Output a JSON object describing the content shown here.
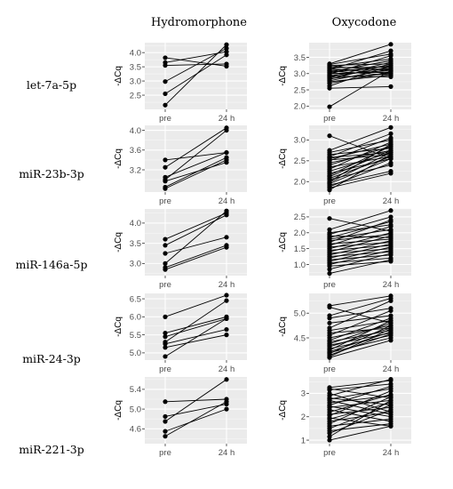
{
  "figure": {
    "column_titles": [
      "Hydromorphone",
      "Oxycodone"
    ],
    "row_labels": [
      "let-7a-5p",
      "miR-23b-3p",
      "miR-146a-5p",
      "miR-24-3p",
      "miR-221-3p"
    ]
  },
  "chart_data": [
    {
      "type": "line",
      "row": "let-7a-5p",
      "column": "Hydromorphone",
      "ylabel": "-ΔCq",
      "categories": [
        "pre",
        "24 h"
      ],
      "ylim": [
        2.0,
        4.35
      ],
      "yticks": [
        2.5,
        3.0,
        3.5,
        4.0
      ],
      "pairs": [
        [
          3.82,
          3.52
        ],
        [
          3.65,
          4.03
        ],
        [
          3.55,
          3.6
        ],
        [
          2.98,
          4.15
        ],
        [
          2.55,
          3.92
        ],
        [
          2.15,
          4.28
        ]
      ]
    },
    {
      "type": "line",
      "row": "let-7a-5p",
      "column": "Oxycodone",
      "ylabel": "-ΔCq",
      "categories": [
        "pre",
        "24 h"
      ],
      "ylim": [
        1.9,
        3.95
      ],
      "yticks": [
        2.0,
        2.5,
        3.0,
        3.5
      ],
      "pairs": [
        [
          3.3,
          3.9
        ],
        [
          3.28,
          3.6
        ],
        [
          3.25,
          3.3
        ],
        [
          3.22,
          3.1
        ],
        [
          3.2,
          3.45
        ],
        [
          3.18,
          3.2
        ],
        [
          3.15,
          3.0
        ],
        [
          3.12,
          3.7
        ],
        [
          3.1,
          3.15
        ],
        [
          3.08,
          2.95
        ],
        [
          3.05,
          3.4
        ],
        [
          3.03,
          3.25
        ],
        [
          3.0,
          3.05
        ],
        [
          2.98,
          3.55
        ],
        [
          2.95,
          3.1
        ],
        [
          2.92,
          2.9
        ],
        [
          2.9,
          3.35
        ],
        [
          2.88,
          3.2
        ],
        [
          2.85,
          3.0
        ],
        [
          2.82,
          3.3
        ],
        [
          2.78,
          3.15
        ],
        [
          2.75,
          2.95
        ],
        [
          2.7,
          3.05
        ],
        [
          2.62,
          3.25
        ],
        [
          2.55,
          2.6
        ],
        [
          1.98,
          3.1
        ]
      ]
    },
    {
      "type": "line",
      "row": "miR-23b-3p",
      "column": "Hydromorphone",
      "ylabel": "-ΔCq",
      "categories": [
        "pre",
        "24 h"
      ],
      "ylim": [
        2.75,
        4.1
      ],
      "yticks": [
        3.2,
        3.6,
        4.0
      ],
      "pairs": [
        [
          3.4,
          3.55
        ],
        [
          3.25,
          4.05
        ],
        [
          3.05,
          3.55
        ],
        [
          3.0,
          4.0
        ],
        [
          2.97,
          3.35
        ],
        [
          2.85,
          3.45
        ],
        [
          2.82,
          3.4
        ]
      ]
    },
    {
      "type": "line",
      "row": "miR-23b-3p",
      "column": "Oxycodone",
      "ylabel": "-ΔCq",
      "categories": [
        "pre",
        "24 h"
      ],
      "ylim": [
        1.75,
        3.35
      ],
      "yticks": [
        2.0,
        2.5,
        3.0
      ],
      "pairs": [
        [
          3.1,
          2.55
        ],
        [
          2.75,
          3.3
        ],
        [
          2.7,
          3.0
        ],
        [
          2.65,
          2.8
        ],
        [
          2.6,
          3.15
        ],
        [
          2.58,
          2.7
        ],
        [
          2.55,
          2.9
        ],
        [
          2.52,
          2.65
        ],
        [
          2.5,
          3.05
        ],
        [
          2.45,
          2.75
        ],
        [
          2.4,
          2.85
        ],
        [
          2.35,
          2.6
        ],
        [
          2.3,
          2.95
        ],
        [
          2.25,
          2.7
        ],
        [
          2.2,
          2.55
        ],
        [
          2.15,
          2.85
        ],
        [
          2.12,
          2.75
        ],
        [
          2.08,
          2.6
        ],
        [
          2.05,
          2.4
        ],
        [
          2.0,
          2.9
        ],
        [
          1.98,
          2.7
        ],
        [
          1.95,
          2.55
        ],
        [
          1.92,
          2.25
        ],
        [
          1.88,
          2.45
        ],
        [
          1.85,
          2.2
        ],
        [
          1.8,
          2.65
        ]
      ]
    },
    {
      "type": "line",
      "row": "miR-146a-5p",
      "column": "Hydromorphone",
      "ylabel": "-ΔCq",
      "categories": [
        "pre",
        "24 h"
      ],
      "ylim": [
        2.7,
        4.35
      ],
      "yticks": [
        3.0,
        3.5,
        4.0
      ],
      "pairs": [
        [
          3.6,
          4.25
        ],
        [
          3.45,
          4.2
        ],
        [
          3.25,
          3.65
        ],
        [
          3.0,
          4.3
        ],
        [
          2.9,
          3.45
        ],
        [
          2.85,
          3.4
        ]
      ]
    },
    {
      "type": "line",
      "row": "miR-146a-5p",
      "column": "Oxycodone",
      "ylabel": "-ΔCq",
      "categories": [
        "pre",
        "24 h"
      ],
      "ylim": [
        0.65,
        2.75
      ],
      "yticks": [
        1.0,
        1.5,
        2.0,
        2.5
      ],
      "pairs": [
        [
          2.45,
          2.05
        ],
        [
          2.1,
          2.7
        ],
        [
          2.0,
          2.25
        ],
        [
          1.95,
          2.5
        ],
        [
          1.9,
          1.85
        ],
        [
          1.85,
          2.35
        ],
        [
          1.8,
          2.1
        ],
        [
          1.75,
          1.95
        ],
        [
          1.7,
          2.4
        ],
        [
          1.65,
          1.8
        ],
        [
          1.6,
          2.2
        ],
        [
          1.55,
          1.7
        ],
        [
          1.5,
          2.0
        ],
        [
          1.45,
          1.6
        ],
        [
          1.4,
          1.9
        ],
        [
          1.35,
          1.5
        ],
        [
          1.3,
          1.75
        ],
        [
          1.25,
          1.4
        ],
        [
          1.2,
          1.65
        ],
        [
          1.15,
          1.3
        ],
        [
          1.1,
          1.55
        ],
        [
          1.05,
          1.2
        ],
        [
          1.0,
          1.45
        ],
        [
          0.95,
          1.1
        ],
        [
          0.85,
          1.35
        ],
        [
          0.72,
          1.15
        ]
      ]
    },
    {
      "type": "line",
      "row": "miR-24-3p",
      "column": "Hydromorphone",
      "ylabel": "-ΔCq",
      "categories": [
        "pre",
        "24 h"
      ],
      "ylim": [
        4.8,
        6.65
      ],
      "yticks": [
        5.0,
        5.5,
        6.0,
        6.5
      ],
      "pairs": [
        [
          6.0,
          6.6
        ],
        [
          5.55,
          6.0
        ],
        [
          5.45,
          5.95
        ],
        [
          5.3,
          6.45
        ],
        [
          5.25,
          5.65
        ],
        [
          5.15,
          5.5
        ],
        [
          4.9,
          5.95
        ]
      ]
    },
    {
      "type": "line",
      "row": "miR-24-3p",
      "column": "Oxycodone",
      "ylabel": "-ΔCq",
      "categories": [
        "pre",
        "24 h"
      ],
      "ylim": [
        4.05,
        5.4
      ],
      "yticks": [
        4.5,
        5.0
      ],
      "pairs": [
        [
          5.15,
          5.35
        ],
        [
          5.12,
          4.8
        ],
        [
          4.95,
          5.3
        ],
        [
          4.9,
          5.1
        ],
        [
          4.8,
          4.95
        ],
        [
          4.7,
          5.25
        ],
        [
          4.65,
          4.85
        ],
        [
          4.6,
          4.7
        ],
        [
          4.55,
          5.05
        ],
        [
          4.5,
          4.75
        ],
        [
          4.45,
          4.9
        ],
        [
          4.42,
          4.65
        ],
        [
          4.38,
          4.8
        ],
        [
          4.35,
          4.6
        ],
        [
          4.32,
          4.7
        ],
        [
          4.28,
          4.55
        ],
        [
          4.25,
          4.85
        ],
        [
          4.22,
          4.62
        ],
        [
          4.2,
          4.5
        ],
        [
          4.18,
          4.75
        ],
        [
          4.15,
          4.58
        ],
        [
          4.12,
          4.68
        ],
        [
          4.1,
          4.45
        ]
      ]
    },
    {
      "type": "line",
      "row": "miR-221-3p",
      "column": "Hydromorphone",
      "ylabel": "-ΔCq",
      "categories": [
        "pre",
        "24 h"
      ],
      "ylim": [
        4.3,
        5.65
      ],
      "yticks": [
        4.6,
        5.0,
        5.4
      ],
      "pairs": [
        [
          5.15,
          5.2
        ],
        [
          4.85,
          5.1
        ],
        [
          4.75,
          5.6
        ],
        [
          4.55,
          5.0
        ],
        [
          4.45,
          5.15
        ]
      ]
    },
    {
      "type": "line",
      "row": "miR-221-3p",
      "column": "Oxycodone",
      "ylabel": "-ΔCq",
      "categories": [
        "pre",
        "24 h"
      ],
      "ylim": [
        0.85,
        3.7
      ],
      "yticks": [
        1,
        2,
        3
      ],
      "pairs": [
        [
          3.25,
          3.55
        ],
        [
          3.2,
          2.8
        ],
        [
          3.15,
          3.4
        ],
        [
          3.0,
          2.2
        ],
        [
          2.9,
          3.6
        ],
        [
          2.8,
          2.5
        ],
        [
          2.75,
          3.2
        ],
        [
          2.7,
          2.1
        ],
        [
          2.6,
          2.9
        ],
        [
          2.5,
          3.3
        ],
        [
          2.45,
          2.0
        ],
        [
          2.4,
          2.7
        ],
        [
          2.3,
          1.8
        ],
        [
          2.2,
          2.95
        ],
        [
          2.1,
          2.4
        ],
        [
          2.05,
          3.1
        ],
        [
          1.95,
          1.6
        ],
        [
          1.9,
          2.6
        ],
        [
          1.8,
          2.2
        ],
        [
          1.7,
          2.85
        ],
        [
          1.6,
          1.9
        ],
        [
          1.5,
          2.5
        ],
        [
          1.4,
          1.7
        ],
        [
          1.3,
          2.3
        ],
        [
          1.15,
          2.7
        ],
        [
          1.0,
          1.6
        ]
      ]
    }
  ]
}
